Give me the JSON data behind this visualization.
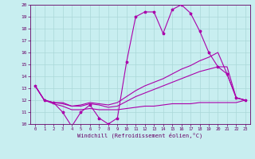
{
  "xlabel": "Windchill (Refroidissement éolien,°C)",
  "xlim": [
    -0.5,
    23.5
  ],
  "ylim": [
    10,
    20
  ],
  "xticks": [
    0,
    1,
    2,
    3,
    4,
    5,
    6,
    7,
    8,
    9,
    10,
    11,
    12,
    13,
    14,
    15,
    16,
    17,
    18,
    19,
    20,
    21,
    22,
    23
  ],
  "yticks": [
    10,
    11,
    12,
    13,
    14,
    15,
    16,
    17,
    18,
    19,
    20
  ],
  "bg_color": "#c8eef0",
  "grid_color": "#aad8d8",
  "line_color": "#aa00aa",
  "line1_x": [
    0,
    1,
    2,
    3,
    4,
    5,
    6,
    7,
    8,
    9,
    10,
    11,
    12,
    13,
    14,
    15,
    16,
    17,
    18,
    19,
    20,
    21,
    22,
    23
  ],
  "line1_y": [
    13.2,
    12.0,
    11.8,
    11.0,
    9.8,
    11.0,
    11.6,
    10.5,
    10.0,
    10.5,
    15.2,
    19.0,
    19.4,
    19.4,
    17.6,
    19.6,
    20.0,
    19.3,
    17.8,
    16.0,
    14.8,
    14.2,
    12.2,
    12.0
  ],
  "line2_x": [
    0,
    1,
    2,
    3,
    4,
    5,
    6,
    7,
    8,
    9,
    10,
    11,
    12,
    13,
    14,
    15,
    16,
    17,
    18,
    19,
    20,
    21,
    22,
    23
  ],
  "line2_y": [
    13.2,
    12.0,
    11.8,
    11.8,
    11.5,
    11.6,
    11.8,
    11.7,
    11.6,
    11.8,
    12.3,
    12.8,
    13.2,
    13.5,
    13.8,
    14.2,
    14.6,
    14.9,
    15.3,
    15.6,
    16.0,
    14.2,
    12.2,
    12.0
  ],
  "line3_x": [
    0,
    1,
    2,
    3,
    4,
    5,
    6,
    7,
    8,
    9,
    10,
    11,
    12,
    13,
    14,
    15,
    16,
    17,
    18,
    19,
    20,
    21,
    22,
    23
  ],
  "line3_y": [
    13.2,
    12.0,
    11.8,
    11.7,
    11.5,
    11.5,
    11.7,
    11.6,
    11.4,
    11.5,
    11.9,
    12.3,
    12.6,
    12.9,
    13.2,
    13.5,
    13.8,
    14.1,
    14.4,
    14.6,
    14.8,
    14.8,
    12.2,
    12.0
  ],
  "line4_x": [
    0,
    1,
    2,
    3,
    4,
    5,
    6,
    7,
    8,
    9,
    10,
    11,
    12,
    13,
    14,
    15,
    16,
    17,
    18,
    19,
    20,
    21,
    22,
    23
  ],
  "line4_y": [
    13.2,
    12.0,
    11.7,
    11.5,
    11.2,
    11.2,
    11.3,
    11.2,
    11.2,
    11.2,
    11.3,
    11.4,
    11.5,
    11.5,
    11.6,
    11.7,
    11.7,
    11.7,
    11.8,
    11.8,
    11.8,
    11.8,
    11.8,
    12.0
  ]
}
